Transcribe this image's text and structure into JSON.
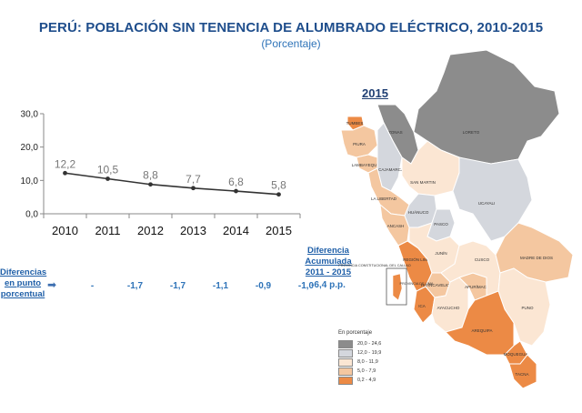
{
  "header": {
    "title": "PERÚ: POBLACIÓN SIN TENENCIA DE ALUMBRADO ELÉCTRICO, 2010-2015",
    "subtitle": "(Porcentaje)"
  },
  "chart_data": {
    "type": "line",
    "x": [
      "2010",
      "2011",
      "2012",
      "2013",
      "2014",
      "2015"
    ],
    "series": [
      {
        "values": [
          12.2,
          10.5,
          8.8,
          7.7,
          6.8,
          5.8
        ]
      }
    ],
    "data_labels": [
      "12,2",
      "10,5",
      "8,8",
      "7,7",
      "6,8",
      "5,8"
    ],
    "yticks": [
      "0,0",
      "10,0",
      "20,0",
      "30,0"
    ],
    "ylim": [
      0,
      30
    ],
    "grid": false,
    "color": "#333333"
  },
  "differences": {
    "label": "Diferencias en punto porcentual",
    "values": [
      "-",
      "-1,7",
      "-1,7",
      "-1,1",
      "-0,9",
      "-1,0"
    ],
    "cumulative_label": "Diferencia Acumulada 2011 - 2015",
    "cumulative_value": "-6,4 p.p."
  },
  "map": {
    "year": "2015",
    "regions": [
      {
        "name": "TUMBES",
        "class": "0,2 - 4,9"
      },
      {
        "name": "PIURA",
        "class": "5,0 - 7,9"
      },
      {
        "name": "LAMBAYEQUE",
        "class": "5,0 - 7,9"
      },
      {
        "name": "CAJAMARCA",
        "class": "12,0 - 19,9"
      },
      {
        "name": "AMAZONAS",
        "class": "20,0 - 24,6"
      },
      {
        "name": "LORETO",
        "class": "20,0 - 24,6"
      },
      {
        "name": "SAN MARTIN",
        "class": "8,0 - 11,9"
      },
      {
        "name": "LA LIBERTAD",
        "class": "5,0 - 7,9"
      },
      {
        "name": "ANCASH",
        "class": "5,0 - 7,9"
      },
      {
        "name": "HUÁNUCO",
        "class": "12,0 - 19,9"
      },
      {
        "name": "UCAYALI",
        "class": "12,0 - 19,9"
      },
      {
        "name": "PASCO",
        "class": "12,0 - 19,9"
      },
      {
        "name": "REGIÓN LIMA",
        "class": "0,2 - 4,9"
      },
      {
        "name": "PROVINCIA CONSTITUCIONAL DEL CALLAO",
        "class": "0,2 - 4,9"
      },
      {
        "name": "PROVINCIA DE LIMA",
        "class": "0,2 - 4,9"
      },
      {
        "name": "JUNÍN",
        "class": "8,0 - 11,9"
      },
      {
        "name": "HUANCAVELICA",
        "class": "5,0 - 7,9"
      },
      {
        "name": "ICA",
        "class": "0,2 - 4,9"
      },
      {
        "name": "AYACUCHO",
        "class": "8,0 - 11,9"
      },
      {
        "name": "APURÍMAC",
        "class": "5,0 - 7,9"
      },
      {
        "name": "CUSCO",
        "class": "8,0 - 11,9"
      },
      {
        "name": "MADRE DE DIOS",
        "class": "5,0 - 7,9"
      },
      {
        "name": "PUNO",
        "class": "8,0 - 11,9"
      },
      {
        "name": "AREQUIPA",
        "class": "0,2 - 4,9"
      },
      {
        "name": "MOQUEGUA",
        "class": "0,2 - 4,9"
      },
      {
        "name": "TACNA",
        "class": "0,2 - 4,9"
      }
    ],
    "legend": {
      "title": "En porcentaje",
      "items": [
        {
          "label": "20,0 - 24,6",
          "color": "#8c8c8c"
        },
        {
          "label": "12,0 - 19,9",
          "color": "#d4d7dd"
        },
        {
          "label": "8,0 - 11,9",
          "color": "#fbe6d3"
        },
        {
          "label": "5,0 - 7,9",
          "color": "#f4c7a0"
        },
        {
          "label": "0,2 - 4,9",
          "color": "#ec8a45"
        }
      ]
    }
  }
}
